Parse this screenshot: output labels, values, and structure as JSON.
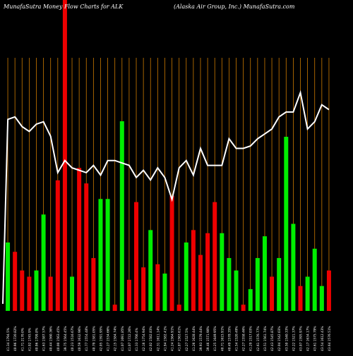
{
  "header": {
    "left": "MunafaSutra  Money Flow  Charts for ALK",
    "right": "(Alaska  Air Group,  Inc.) MunafaSutra.com"
  },
  "colors": {
    "background": "#000000",
    "up": "#00ee00",
    "down": "#ee0000",
    "grid": "#cc7a00",
    "line": "#ffffff",
    "text": "#ffffff"
  },
  "chart_data": {
    "type": "bar",
    "title": "MunafaSutra  Money Flow  Charts for ALK",
    "subtitle": "(Alaska  Air Group,  Inc.) MunafaSutra.com",
    "ylim": [
      0,
      100
    ],
    "categories": [
      "41.34 1794.5%",
      "40.96 1720.82%",
      "41.71 2170.0%",
      "41.02 1745.9%",
      "40.96 1799.8%",
      "41.63 1587.57%",
      "40.44 1560.36%",
      "40.00 1563.45%",
      "39.75 1564.45%",
      "40.23 1516.67%",
      "40.59 1632.96%",
      "41.77 1554.48%",
      "40.79 1581.05%",
      "42.05 1591.95%",
      "41.27 1534.66%",
      "42.15 1584.74%",
      "41.07 1691.85%",
      "41.07 1722.26%",
      "41.33 1766.4%",
      "42.16 1754.94%",
      "42.02 1582.83%",
      "42.31 1611.14%",
      "41.94 1582.41%",
      "41.24 1564.91%",
      "41.87 1563.61%",
      "42.27 1527.5%",
      "41.26 1628.44%",
      "39.93 1579.44%",
      "39.46 1571.90%",
      "41.25 1649.95%",
      "40.71 1615.91%",
      "40.49 1578.35%",
      "41.54 1520.49%",
      "42.27 1558.46%",
      "41.29 1517.03%",
      "42.61 1576.77%",
      "43.51 1561.74%",
      "42.43 1545.87%",
      "42.04 1542.03%",
      "43.50 1540.33%",
      "42.22 1521.37%",
      "43.07 1595.97%",
      "42.17 1634.17%",
      "43.61 1575.79%",
      "43.54 1612.43%",
      "43.64 1576.51%"
    ],
    "values": [
      22,
      19,
      13,
      11,
      13,
      31,
      11,
      42,
      100,
      11,
      46,
      41,
      17,
      36,
      36,
      2,
      61,
      10,
      35,
      14,
      26,
      15,
      12,
      37,
      2,
      22,
      26,
      18,
      25,
      35,
      25,
      17,
      13,
      2,
      7,
      17,
      24,
      11,
      17,
      56,
      28,
      8,
      11,
      20,
      8,
      13
    ],
    "up": [
      true,
      false,
      false,
      false,
      true,
      true,
      false,
      false,
      false,
      true,
      false,
      false,
      false,
      true,
      true,
      false,
      true,
      false,
      false,
      false,
      true,
      false,
      true,
      false,
      false,
      true,
      false,
      false,
      false,
      false,
      true,
      true,
      true,
      false,
      true,
      true,
      true,
      false,
      true,
      true,
      true,
      false,
      true,
      true,
      true,
      false
    ],
    "line": [
      79,
      80,
      76,
      74,
      77,
      78,
      72,
      57,
      62,
      59,
      58,
      57,
      60,
      56,
      62,
      62,
      61,
      60,
      55,
      58,
      54,
      59,
      55,
      46,
      59,
      62,
      56,
      67,
      60,
      60,
      60,
      71,
      67,
      67,
      68,
      71,
      73,
      75,
      80,
      82,
      82,
      90,
      75,
      78,
      85,
      83
    ],
    "grid": true,
    "legend": "none",
    "xlabel": "",
    "ylabel": ""
  }
}
